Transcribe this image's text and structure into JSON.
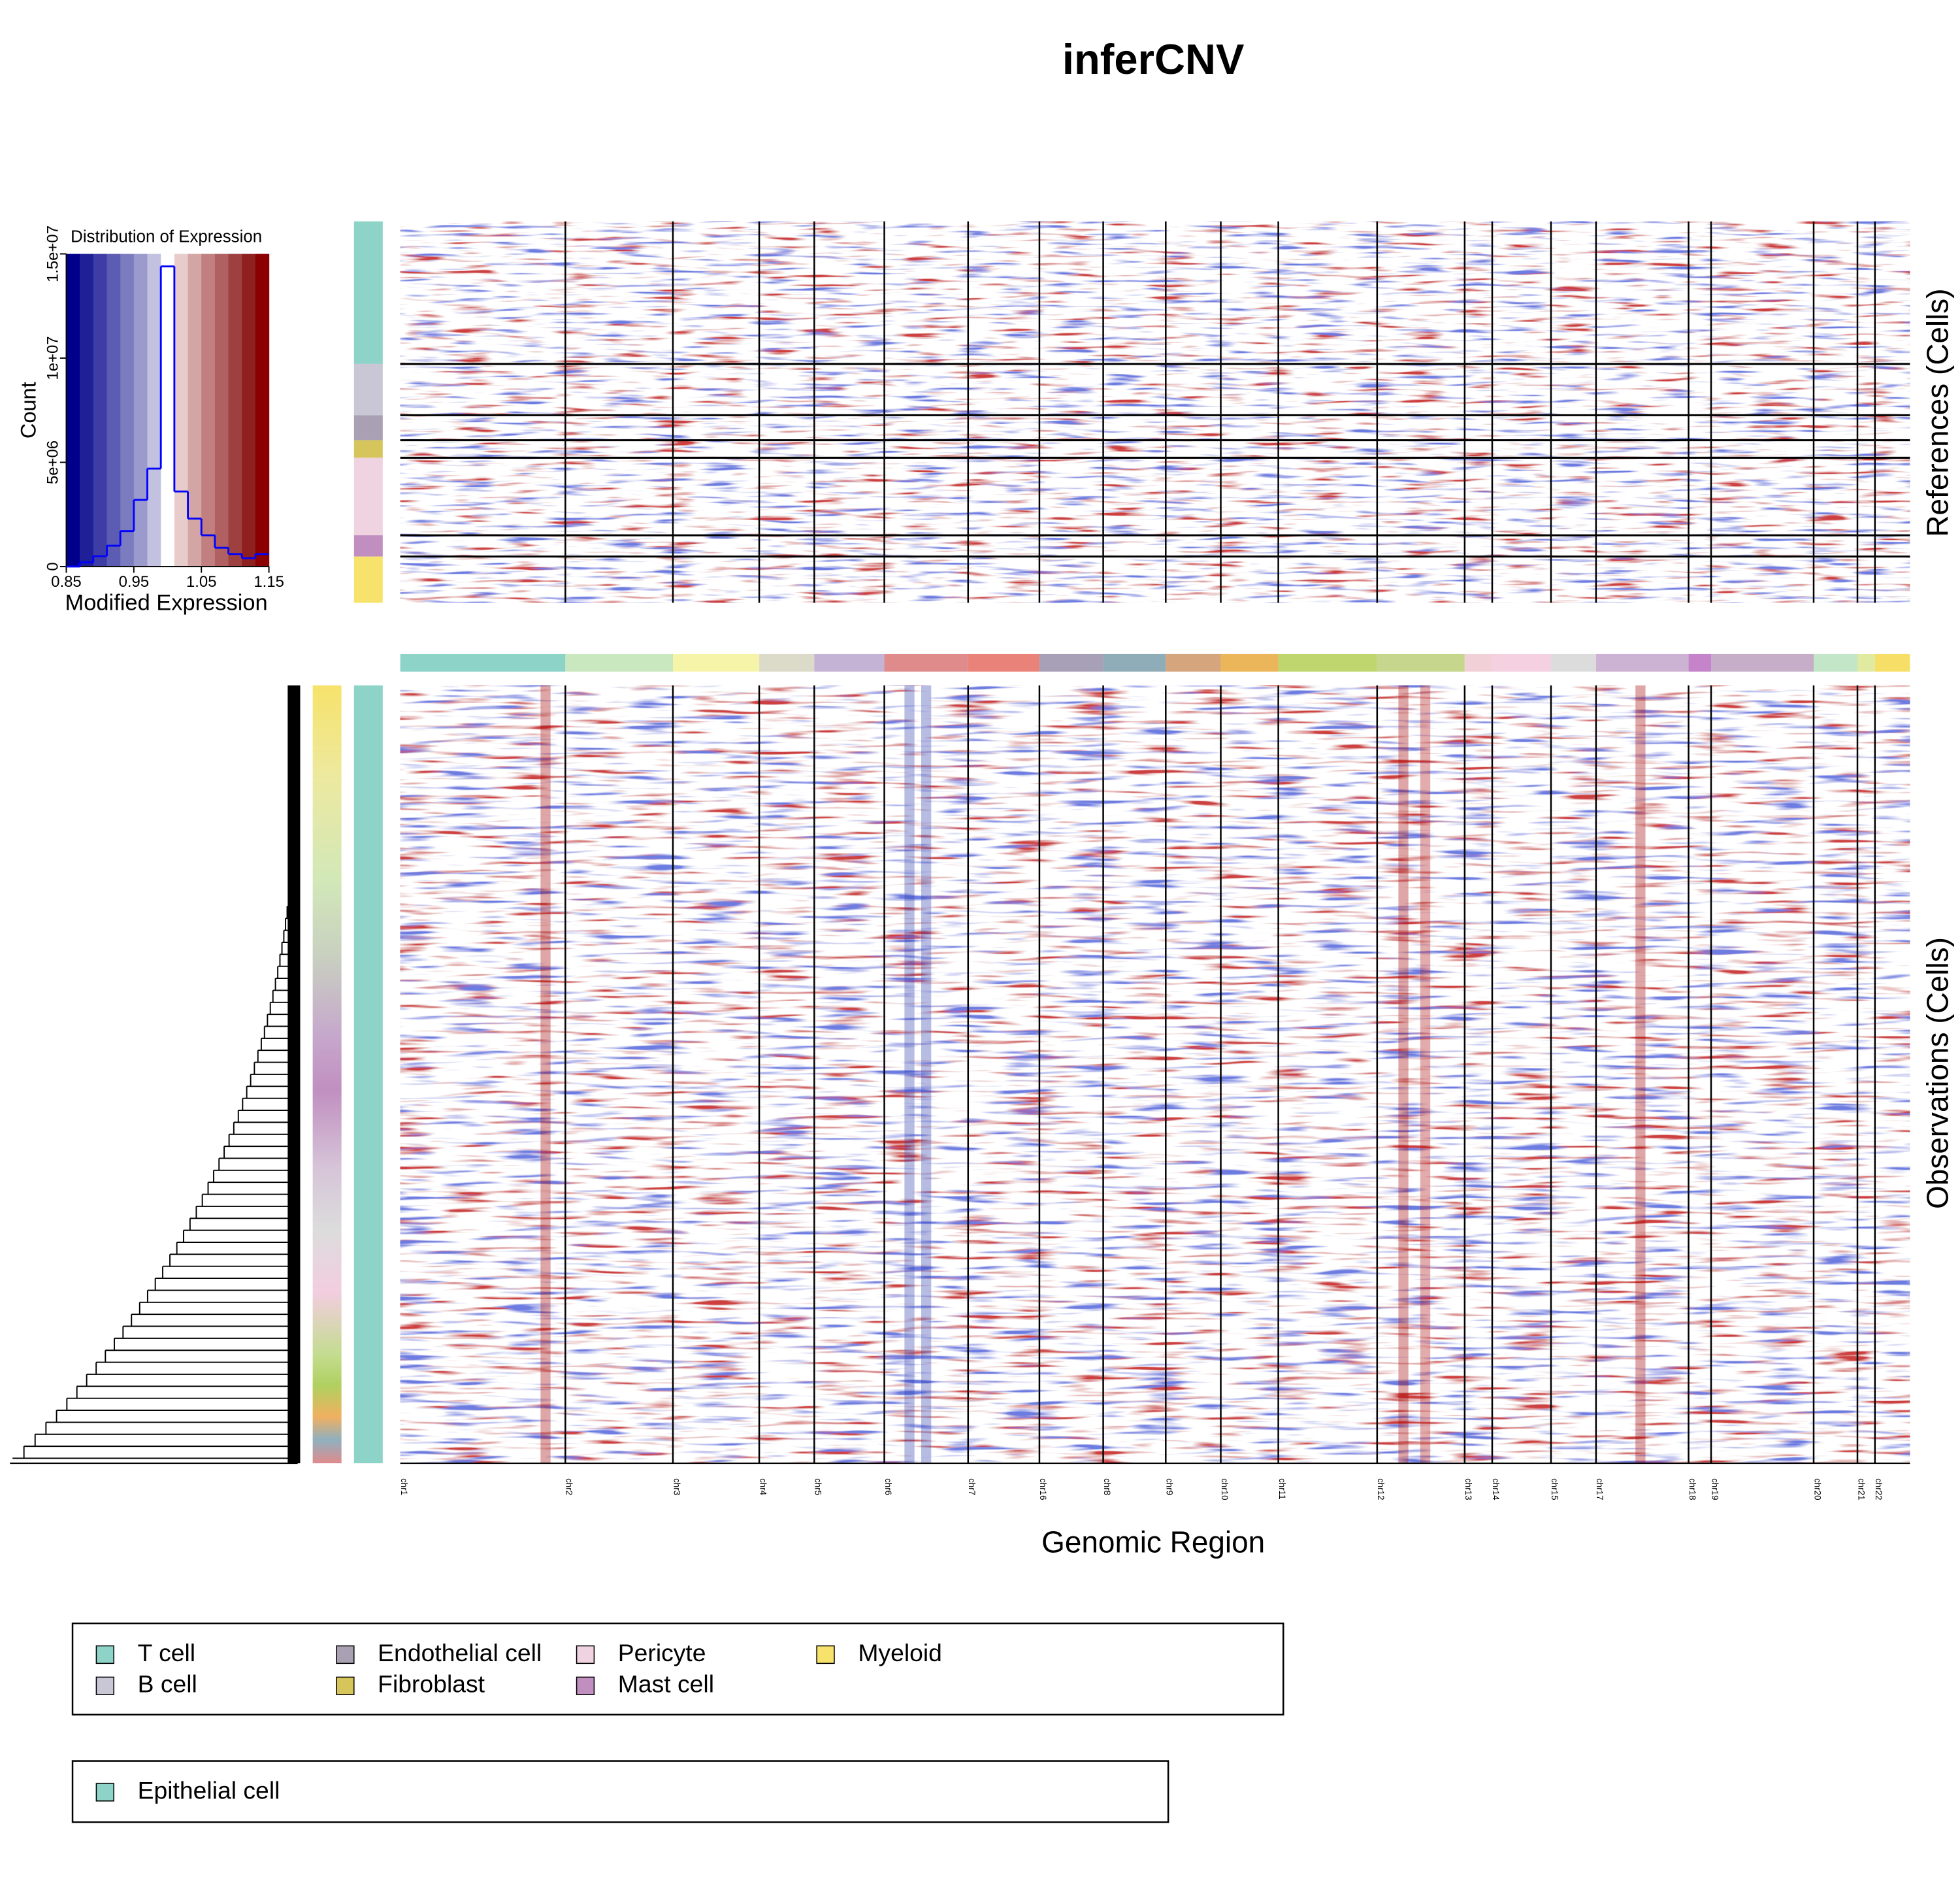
{
  "title": "inferCNV",
  "chart_data": [
    {
      "type": "histogram",
      "title": "Distribution of Expression",
      "x_label": "Modified Expression",
      "y_label": "Count",
      "bins": [
        0.85,
        0.87,
        0.89,
        0.91,
        0.93,
        0.95,
        0.97,
        0.99,
        1.01,
        1.03,
        1.05,
        1.07,
        1.09,
        1.11,
        1.13,
        1.15
      ],
      "counts": [
        0,
        200000,
        500000,
        1000000,
        1700000,
        3200000,
        4700000,
        14400000,
        3600000,
        2300000,
        1500000,
        900000,
        600000,
        400000,
        600000
      ],
      "color": "#0000ff",
      "colorkey": [
        "#00008b",
        "#1f1f98",
        "#3d3da5",
        "#5c5cb2",
        "#7b7bbf",
        "#9a9acc",
        "#c2c2e0",
        "#ffffff",
        "#e8cccc",
        "#d4a5a5",
        "#c27f7f",
        "#b06060",
        "#9e4040",
        "#8f2020",
        "#8b0000"
      ],
      "xlim": [
        0.85,
        1.15
      ],
      "xticks": [
        0.85,
        0.95,
        1.05,
        1.15
      ],
      "ylim": [
        0,
        15000000
      ],
      "yticks": [
        0,
        {
          "value": 5000000,
          "label": "5e+06"
        },
        {
          "value": 10000000,
          "label": "1e+07"
        },
        {
          "value": 15000000,
          "label": "1.5e+07"
        }
      ]
    },
    {
      "type": "heatmap",
      "x_label": "Genomic Region",
      "reference_label": "References (Cells)",
      "observation_label": "Observations (Cells)",
      "chromosomes": [
        {
          "name": "chr1",
          "span": 132,
          "color": "#8dd3c7"
        },
        {
          "name": "chr2",
          "span": 86,
          "color": "#c9e8c0"
        },
        {
          "name": "chr3",
          "span": 69,
          "color": "#f6f4a8"
        },
        {
          "name": "chr4",
          "span": 44,
          "color": "#dcdac8"
        },
        {
          "name": "chr5",
          "span": 56,
          "color": "#c5b3d6"
        },
        {
          "name": "chr6",
          "span": 67,
          "color": "#e08b8b"
        },
        {
          "name": "chr7",
          "span": 57,
          "color": "#e9837a"
        },
        {
          "name": "chr16",
          "span": 51,
          "color": "#a7a0b6"
        },
        {
          "name": "chr8",
          "span": 50,
          "color": "#8fadb8"
        },
        {
          "name": "chr9",
          "span": 44,
          "color": "#d5a67e"
        },
        {
          "name": "chr10",
          "span": 46,
          "color": "#ebb65a"
        },
        {
          "name": "chr11",
          "span": 79,
          "color": "#bfd56e"
        },
        {
          "name": "chr12",
          "span": 70,
          "color": "#c6d68c"
        },
        {
          "name": "chr13",
          "span": 22,
          "color": "#f2d0d8"
        },
        {
          "name": "chr14",
          "span": 47,
          "color": "#f4d0e0"
        },
        {
          "name": "chr15",
          "span": 36,
          "color": "#dcdcdc"
        },
        {
          "name": "chr17",
          "span": 74,
          "color": "#cdb3d3"
        },
        {
          "name": "chr18",
          "span": 18,
          "color": "#c584c9"
        },
        {
          "name": "chr19",
          "span": 82,
          "color": "#c6aec9"
        },
        {
          "name": "chr20",
          "span": 35,
          "color": "#c3e5c8"
        },
        {
          "name": "chr21",
          "span": 14,
          "color": "#e0eaa0"
        },
        {
          "name": "chr22",
          "span": 28,
          "color": "#f7df67"
        }
      ],
      "reference_groups": [
        {
          "name": "T cell",
          "color": "#8dd3c7",
          "cells": 114
        },
        {
          "name": "B cell",
          "color": "#c9c7d6",
          "cells": 41
        },
        {
          "name": "Endothelial cell",
          "color": "#a9a1b3",
          "cells": 20
        },
        {
          "name": "Fibroblast",
          "color": "#d6c55a",
          "cells": 14
        },
        {
          "name": "Pericyte",
          "color": "#f0d3e0",
          "cells": 62
        },
        {
          "name": "Mast cell",
          "color": "#c08fc0",
          "cells": 17
        },
        {
          "name": "Myeloid",
          "color": "#f7e36b",
          "cells": 37
        }
      ],
      "observation_groups": [
        {
          "name": "Epithelial cell",
          "color": "#8dd3c7",
          "cells": 622
        }
      ]
    }
  ]
}
